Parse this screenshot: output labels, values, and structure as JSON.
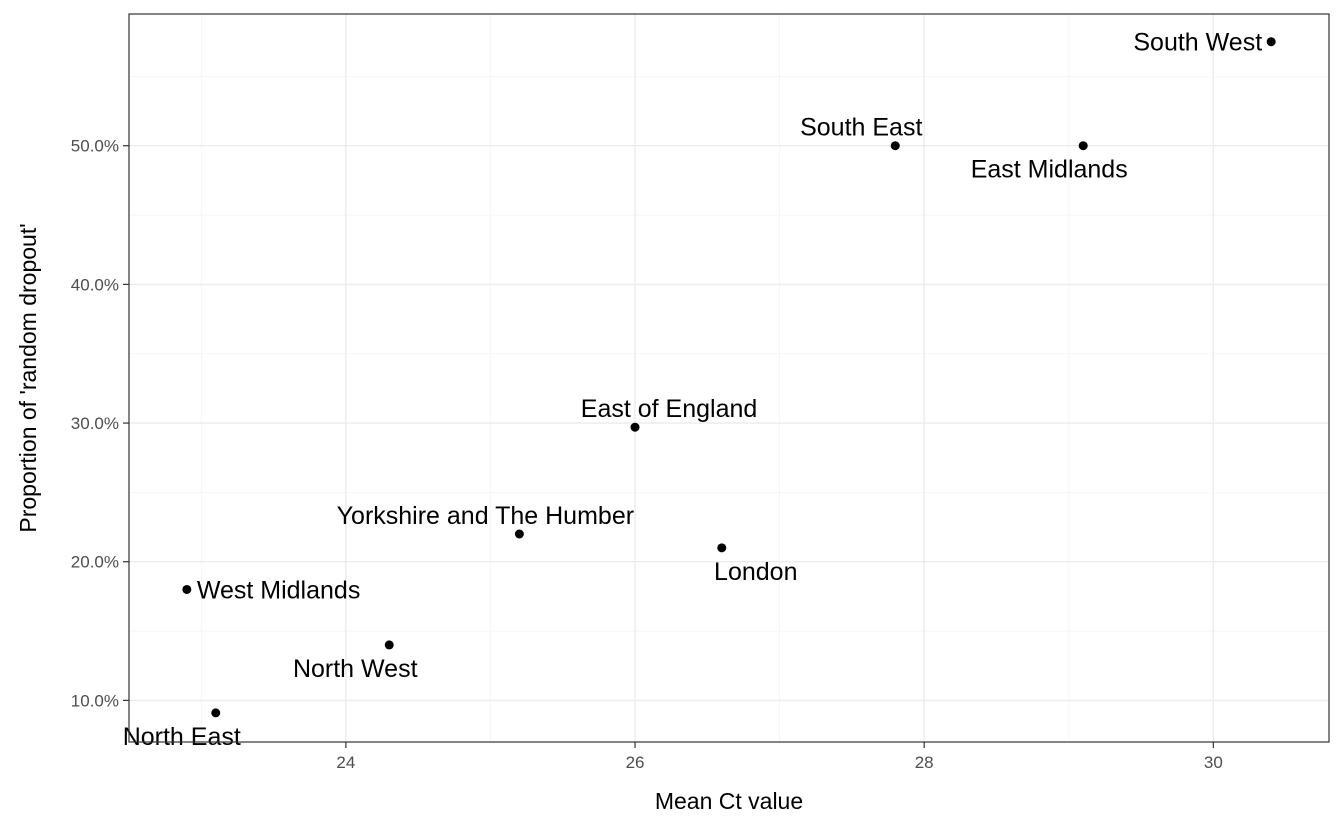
{
  "chart_data": {
    "type": "scatter",
    "xlabel": "Mean Ct value",
    "ylabel": "Proportion of 'random dropout'",
    "xlim": [
      22.5,
      30.8
    ],
    "ylim": [
      0.07,
      0.595
    ],
    "x_ticks": [
      24,
      26,
      28,
      30
    ],
    "x_tick_labels": [
      "24",
      "26",
      "28",
      "30"
    ],
    "y_ticks": [
      0.1,
      0.2,
      0.3,
      0.4,
      0.5
    ],
    "y_tick_labels": [
      "10.0%",
      "20.0%",
      "30.0%",
      "40.0%",
      "50.0%"
    ],
    "grid": true,
    "points": [
      {
        "label": "South West",
        "x": 30.4,
        "y": 0.575,
        "label_pos": "left"
      },
      {
        "label": "South East",
        "x": 27.8,
        "y": 0.5,
        "label_pos": "above-left"
      },
      {
        "label": "East Midlands",
        "x": 29.1,
        "y": 0.5,
        "label_pos": "below-left"
      },
      {
        "label": "East of England",
        "x": 26.0,
        "y": 0.297,
        "label_pos": "above"
      },
      {
        "label": "Yorkshire and The Humber",
        "x": 25.2,
        "y": 0.22,
        "label_pos": "above-left"
      },
      {
        "label": "London",
        "x": 26.6,
        "y": 0.21,
        "label_pos": "below"
      },
      {
        "label": "West Midlands",
        "x": 22.9,
        "y": 0.18,
        "label_pos": "right"
      },
      {
        "label": "North West",
        "x": 24.3,
        "y": 0.14,
        "label_pos": "below-left"
      },
      {
        "label": "North East",
        "x": 23.1,
        "y": 0.091,
        "label_pos": "below-left"
      }
    ]
  }
}
